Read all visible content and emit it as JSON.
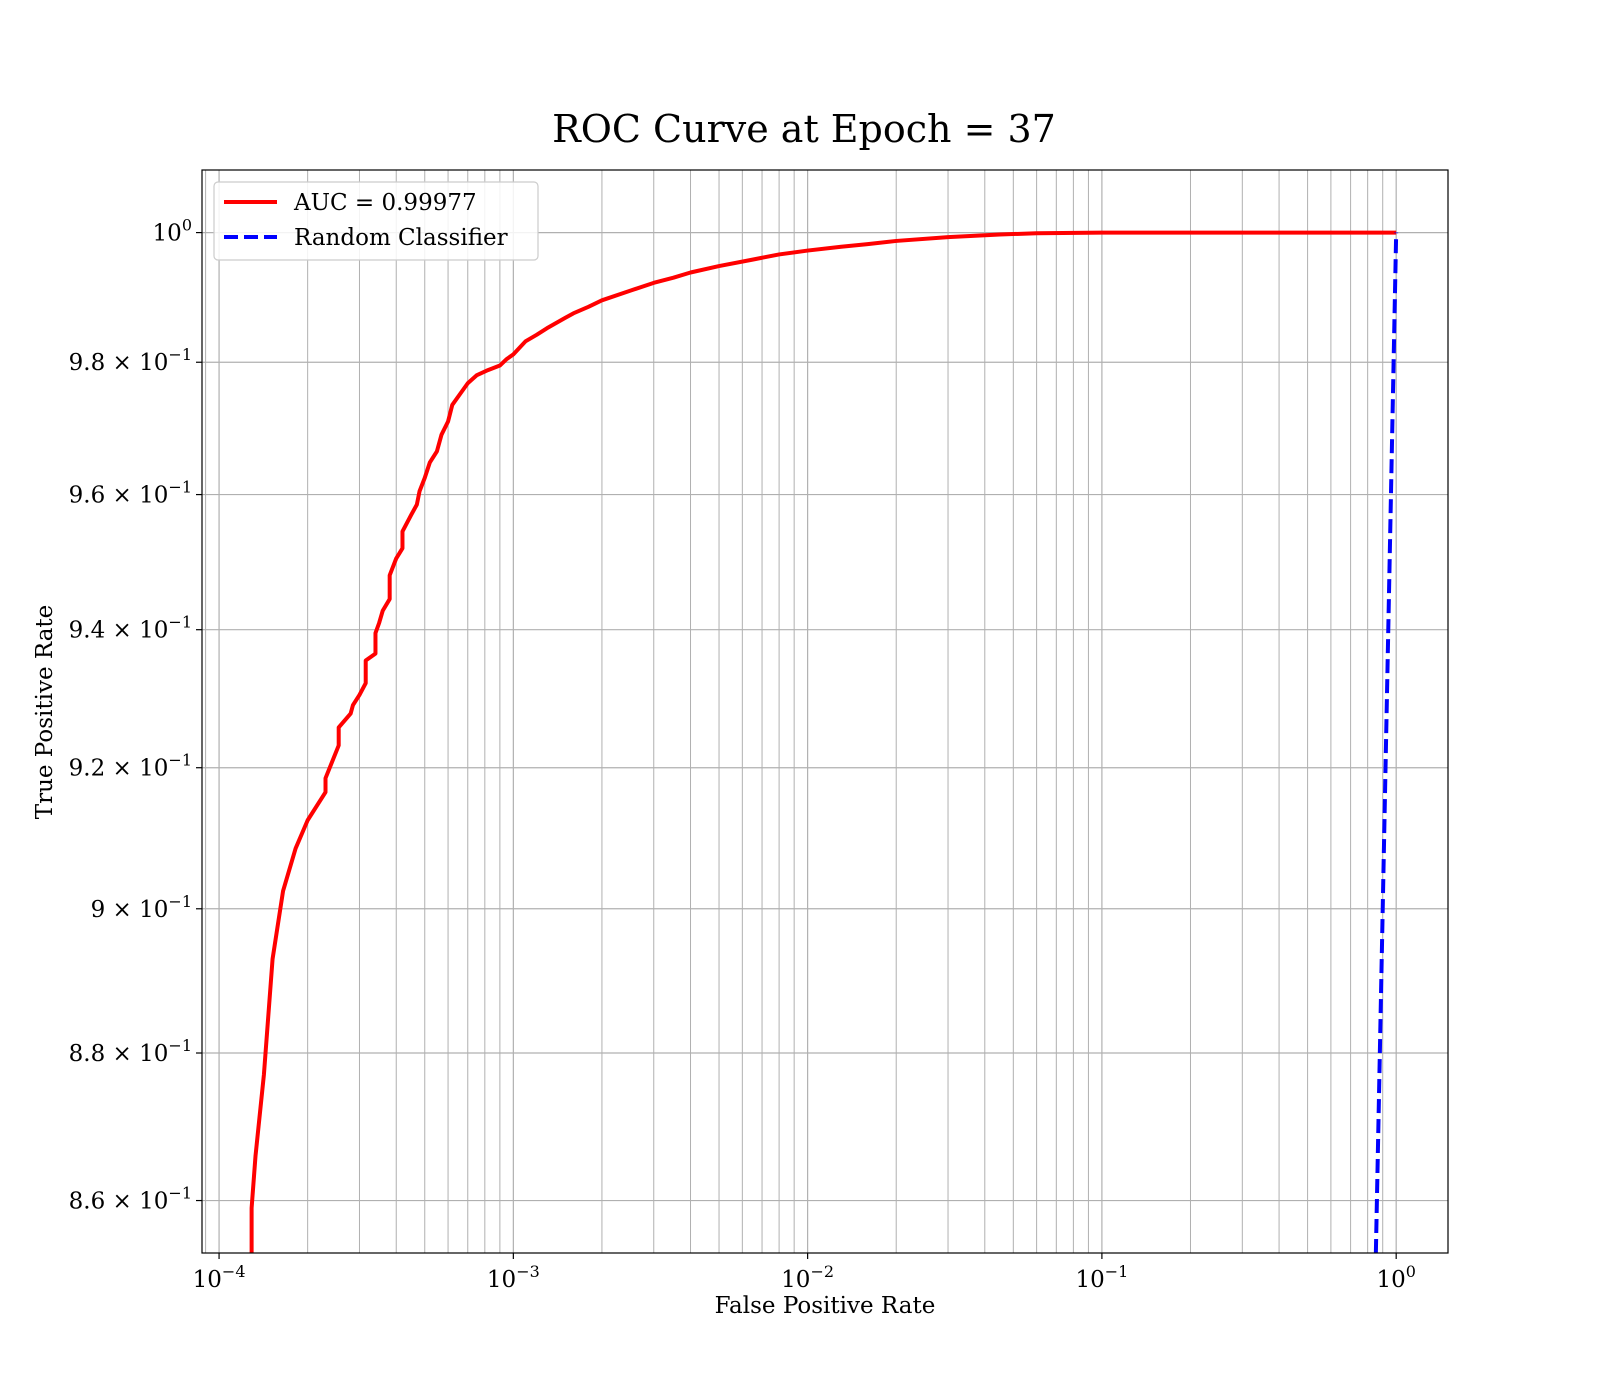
{
  "chart_data": {
    "type": "line",
    "title": "ROC Curve at Epoch = 37",
    "xlabel": "False Positive Rate",
    "ylabel": "True Positive Rate",
    "xscale": "log",
    "yscale": "log",
    "xlim": [
      8.75e-05,
      1.5
    ],
    "ylim": [
      0.853,
      1.0098
    ],
    "grid": "both",
    "legend_position": "upper left",
    "x_ticks": [
      {
        "value": 0.0001,
        "base": "10",
        "exp": "−4"
      },
      {
        "value": 0.001,
        "base": "10",
        "exp": "−3"
      },
      {
        "value": 0.01,
        "base": "10",
        "exp": "−2"
      },
      {
        "value": 0.1,
        "base": "10",
        "exp": "−1"
      },
      {
        "value": 1,
        "base": "10",
        "exp": "0"
      }
    ],
    "y_ticks": [
      {
        "value": 1.0,
        "mant": "",
        "base": "10",
        "exp": "0"
      },
      {
        "value": 0.98,
        "mant": "9.8 × ",
        "base": "10",
        "exp": "−1"
      },
      {
        "value": 0.96,
        "mant": "9.6 × ",
        "base": "10",
        "exp": "−1"
      },
      {
        "value": 0.94,
        "mant": "9.4 × ",
        "base": "10",
        "exp": "−1"
      },
      {
        "value": 0.92,
        "mant": "9.2 × ",
        "base": "10",
        "exp": "−1"
      },
      {
        "value": 0.9,
        "mant": "9 × ",
        "base": "10",
        "exp": "−1"
      },
      {
        "value": 0.88,
        "mant": "8.8 × ",
        "base": "10",
        "exp": "−1"
      },
      {
        "value": 0.86,
        "mant": "8.6 × ",
        "base": "10",
        "exp": "−1"
      }
    ],
    "series": [
      {
        "name": "AUC = 0.99977",
        "color": "#ff0000",
        "style": "solid",
        "x": [
          0.000129,
          0.000129,
          0.000133,
          0.000142,
          0.000152,
          0.000165,
          0.000182,
          0.0002,
          0.00023,
          0.00023,
          0.000255,
          0.000255,
          0.00028,
          0.000285,
          0.0003,
          0.000315,
          0.000315,
          0.00034,
          0.00034,
          0.00035,
          0.00036,
          0.00038,
          0.00038,
          0.0004,
          0.00042,
          0.00042,
          0.00045,
          0.00047,
          0.00048,
          0.0005,
          0.00052,
          0.00055,
          0.00057,
          0.0006,
          0.00062,
          0.00066,
          0.0007,
          0.00075,
          0.00082,
          0.0009,
          0.00095,
          0.001,
          0.0011,
          0.0012,
          0.0013,
          0.0015,
          0.0016,
          0.0018,
          0.002,
          0.0025,
          0.003,
          0.0035,
          0.004,
          0.005,
          0.0065,
          0.008,
          0.01,
          0.013,
          0.016,
          0.02,
          0.03,
          0.045,
          0.06,
          0.1,
          0.3,
          1.0
        ],
        "y": [
          0.853,
          0.859,
          0.866,
          0.877,
          0.893,
          0.9025,
          0.9085,
          0.9125,
          0.9165,
          0.9185,
          0.9232,
          0.9258,
          0.9278,
          0.929,
          0.9305,
          0.9322,
          0.9355,
          0.9365,
          0.9395,
          0.941,
          0.9428,
          0.9445,
          0.948,
          0.9505,
          0.952,
          0.9545,
          0.957,
          0.9585,
          0.9605,
          0.9625,
          0.9648,
          0.9665,
          0.969,
          0.971,
          0.9735,
          0.9752,
          0.9768,
          0.978,
          0.9788,
          0.9795,
          0.9805,
          0.9812,
          0.9832,
          0.9842,
          0.9852,
          0.9868,
          0.9875,
          0.9885,
          0.9895,
          0.991,
          0.9922,
          0.993,
          0.9938,
          0.9948,
          0.9958,
          0.9966,
          0.9972,
          0.9978,
          0.9982,
          0.9987,
          0.9993,
          0.9997,
          0.9999,
          1.0,
          1.0,
          1.0
        ]
      },
      {
        "name": "Random Classifier",
        "color": "#0000ff",
        "style": "dashed",
        "x": [
          0.853,
          1.0
        ],
        "y": [
          0.853,
          1.0
        ]
      }
    ]
  }
}
